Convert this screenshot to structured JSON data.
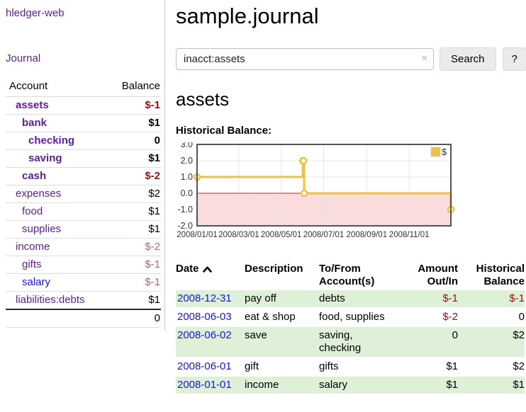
{
  "sidebar": {
    "brand": "hledger-web",
    "journal_link": "Journal",
    "accounts_table": {
      "headers": {
        "account": "Account",
        "balance": "Balance"
      },
      "rows": [
        {
          "name": "assets",
          "level": 1,
          "balance": "$-1",
          "bold": true,
          "neg": "strong"
        },
        {
          "name": "bank",
          "level": 2,
          "balance": "$1",
          "bold": true
        },
        {
          "name": "checking",
          "level": 3,
          "balance": "0",
          "bold": true
        },
        {
          "name": "saving",
          "level": 3,
          "balance": "$1",
          "bold": true
        },
        {
          "name": "cash",
          "level": 2,
          "balance": "$-2",
          "bold": true,
          "neg": "strong"
        },
        {
          "name": "expenses",
          "level": 1,
          "balance": "$2"
        },
        {
          "name": "food",
          "level": 2,
          "balance": "$1"
        },
        {
          "name": "supplies",
          "level": 2,
          "balance": "$1"
        },
        {
          "name": "income",
          "level": 1,
          "balance": "$-2",
          "neg": "soft"
        },
        {
          "name": "gifts",
          "level": 2,
          "balance": "$-1",
          "neg": "soft"
        },
        {
          "name": "salary",
          "level": 2,
          "balance": "$-1",
          "neg": "soft",
          "link_color": "blue"
        },
        {
          "name": "liabilities:debts",
          "level": 1,
          "balance": "$1"
        }
      ],
      "total": "0"
    }
  },
  "main": {
    "title": "sample.journal",
    "search": {
      "value": "inacct:assets",
      "clear_icon": "×",
      "search_button": "Search",
      "help_button": "?"
    },
    "account_heading": "assets",
    "chart_label": "Historical Balance:",
    "register_table": {
      "headers": {
        "date": "Date",
        "description": "Description",
        "accounts": "To/From\nAccount(s)",
        "amount": "Amount\nOut/In",
        "balance": "Historical\nBalance"
      },
      "rows": [
        {
          "date": "2008-12-31",
          "description": "pay off",
          "accounts": "debts",
          "amount": "$-1",
          "balance": "$-1",
          "amount_neg": true,
          "balance_neg": true
        },
        {
          "date": "2008-06-03",
          "description": "eat & shop",
          "accounts": "food, supplies",
          "amount": "$-2",
          "balance": "0",
          "amount_neg": true
        },
        {
          "date": "2008-06-02",
          "description": "save",
          "accounts": "saving,\nchecking",
          "amount": "0",
          "balance": "$2"
        },
        {
          "date": "2008-06-01",
          "description": "gift",
          "accounts": "gifts",
          "amount": "$1",
          "balance": "$2"
        },
        {
          "date": "2008-01-01",
          "description": "income",
          "accounts": "salary",
          "amount": "$1",
          "balance": "$1"
        }
      ]
    }
  },
  "chart_data": {
    "type": "line",
    "title": "Historical Balance:",
    "steps": true,
    "series": [
      {
        "name": "$",
        "color": "#edc240",
        "x": [
          "2008-01-01",
          "2008-06-01",
          "2008-06-02",
          "2008-06-03",
          "2008-12-31"
        ],
        "y": [
          1,
          2,
          2,
          0,
          -1
        ]
      }
    ],
    "xrange": [
      "2008-01-01",
      "2008-12-31"
    ],
    "ylim": [
      -2,
      3
    ],
    "yticks": [
      "3.0",
      "2.0",
      "1.0",
      "0.0",
      "-1.0",
      "-2.0"
    ],
    "ytick_values": [
      3,
      2,
      1,
      0,
      -1,
      -2
    ],
    "xticks": [
      "2008/01/01",
      "2008/03/01",
      "2008/05/01",
      "2008/07/01",
      "2008/09/01",
      "2008/11/01"
    ],
    "legend": {
      "label": "$",
      "position": "top-right"
    },
    "grid": true,
    "zero_line_color": "#b03030",
    "negative_fill": "#fbdcdc",
    "grid_color": "#e4e4e4",
    "border_color": "#545454"
  }
}
